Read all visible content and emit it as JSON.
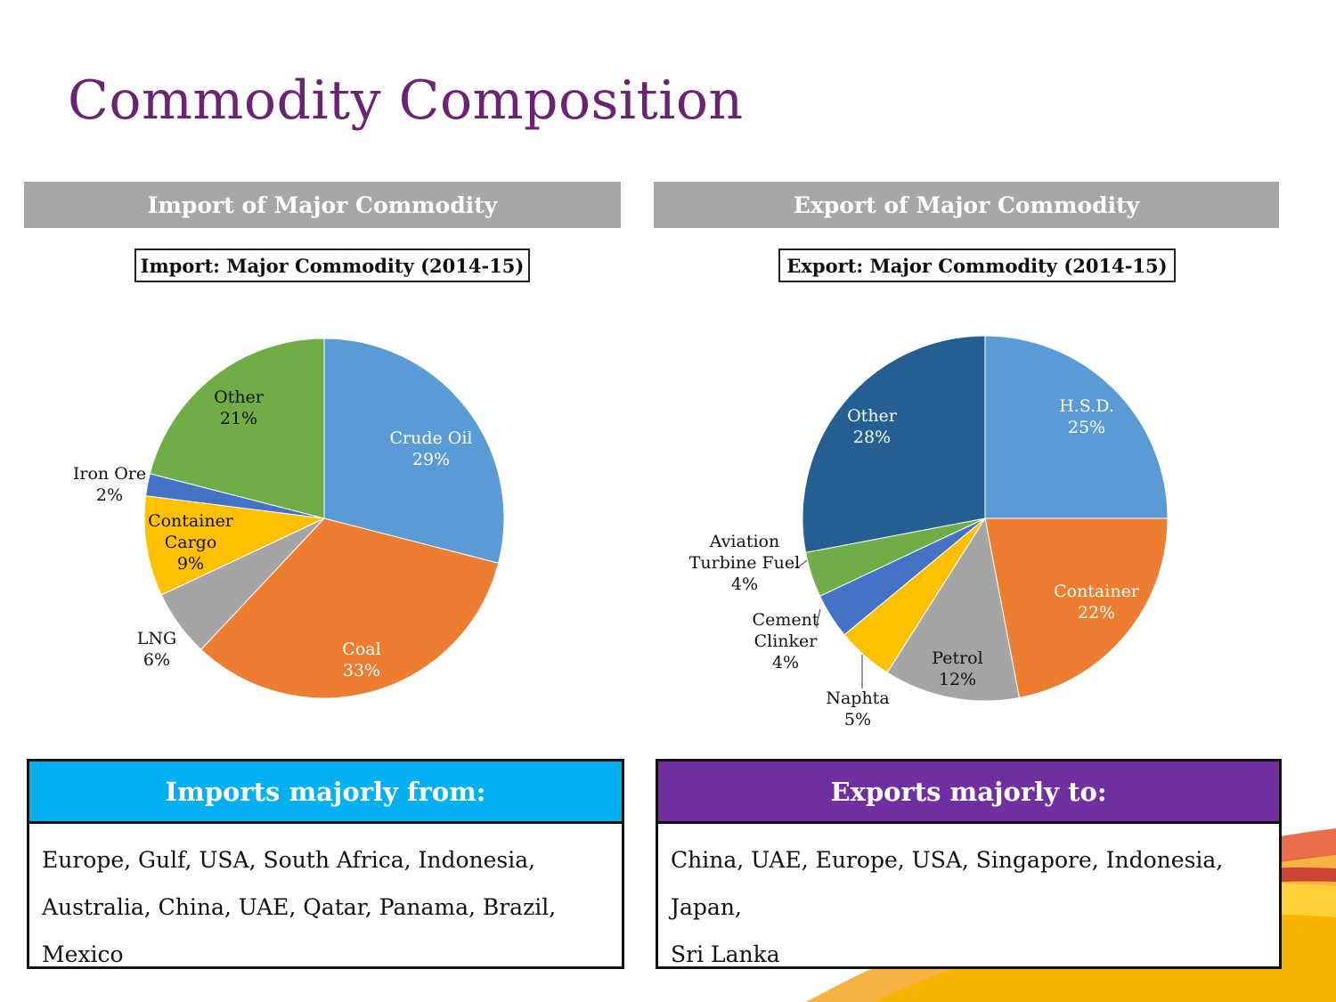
{
  "title": "Commodity Composition",
  "sections": {
    "import_header": "Import of Major Commodity",
    "export_header": "Export of Major Commodity"
  },
  "colors": {
    "title": "#6b2473",
    "section_bar": "#a5a7a9",
    "imports_head": "#00b0f0",
    "exports_head": "#7030a0"
  },
  "chart_data": [
    {
      "type": "pie",
      "title": "Import: Major Commodity (2014-15)",
      "start": "12 o'clock, clockwise",
      "slices": [
        {
          "label": "Crude Oil",
          "value": 29,
          "pct": "29%",
          "color": "#5b9bd5"
        },
        {
          "label": "Coal",
          "value": 33,
          "pct": "33%",
          "color": "#ed7d31"
        },
        {
          "label": "LNG",
          "value": 6,
          "pct": "6%",
          "color": "#a5a5a5"
        },
        {
          "label": "Container Cargo",
          "value": 9,
          "pct": "9%",
          "color": "#ffc000"
        },
        {
          "label": "Iron Ore",
          "value": 2,
          "pct": "2%",
          "color": "#4472c4"
        },
        {
          "label": "Other",
          "value": 21,
          "pct": "21%",
          "color": "#70ad47"
        }
      ]
    },
    {
      "type": "pie",
      "title": "Export: Major Commodity (2014-15)",
      "start": "12 o'clock, clockwise",
      "slices": [
        {
          "label": "H.S.D.",
          "value": 25,
          "pct": "25%",
          "color": "#5b9bd5"
        },
        {
          "label": "Container",
          "value": 22,
          "pct": "22%",
          "color": "#ed7d31"
        },
        {
          "label": "Petrol",
          "value": 12,
          "pct": "12%",
          "color": "#a5a5a5"
        },
        {
          "label": "Naphta",
          "value": 5,
          "pct": "5%",
          "color": "#ffc000"
        },
        {
          "label": "Cement Clinker",
          "value": 4,
          "pct": "4%",
          "color": "#4472c4"
        },
        {
          "label": "Aviation Turbine Fuel",
          "value": 4,
          "pct": "4%",
          "color": "#70ad47"
        },
        {
          "label": "Other",
          "value": 28,
          "pct": "28%",
          "color": "#255e91"
        }
      ]
    }
  ],
  "imports_box": {
    "heading": "Imports majorly from:",
    "line1": "Europe, Gulf, USA, South Africa, Indonesia,",
    "line2": "Australia, China, UAE, Qatar, Panama, Brazil, Mexico"
  },
  "exports_box": {
    "heading": "Exports majorly to:",
    "line1": "China, UAE, Europe, USA, Singapore, Indonesia, Japan,",
    "line2": "Sri Lanka"
  }
}
